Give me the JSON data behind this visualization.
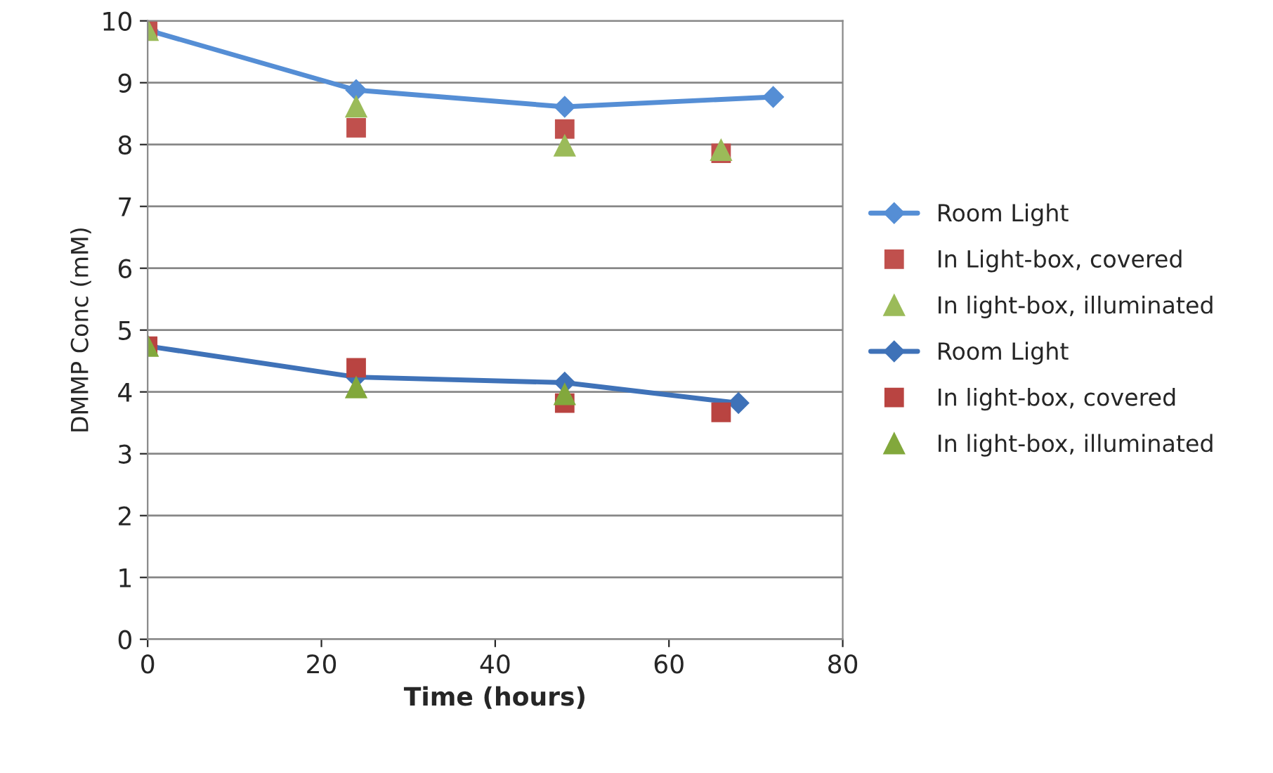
{
  "chart_data": {
    "type": "line",
    "xlabel": "Time (hours)",
    "ylabel": "DMMP Conc (mM)",
    "xlim": [
      0,
      80
    ],
    "xticks": [
      0,
      20,
      40,
      60,
      80
    ],
    "ylim": [
      0,
      10
    ],
    "yticks": [
      0,
      1,
      2,
      3,
      4,
      5,
      6,
      7,
      8,
      9,
      10
    ],
    "grid": "y",
    "legend": "right",
    "series": [
      {
        "name": "Room Light",
        "marker": "diamond",
        "line_style": "solid",
        "color": "#558ed5",
        "x": [
          0,
          24,
          48,
          72
        ],
        "values": [
          9.85,
          8.88,
          8.61,
          8.77
        ]
      },
      {
        "name": "In Light-box, covered",
        "type": "scatter",
        "marker": "square",
        "color": "#c0504d",
        "x": [
          0,
          24,
          48,
          66
        ],
        "values": [
          9.85,
          8.27,
          8.25,
          7.86
        ]
      },
      {
        "name": "In light-box, illuminated",
        "type": "scatter",
        "marker": "triangle",
        "color": "#9bbb59",
        "x": [
          0,
          24,
          48,
          66
        ],
        "values": [
          9.85,
          8.61,
          7.98,
          7.91
        ]
      },
      {
        "name": "Room Light",
        "marker": "diamond",
        "line_style": "solid",
        "color": "#3f72b8",
        "x": [
          0,
          24,
          48,
          68
        ],
        "values": [
          4.74,
          4.24,
          4.15,
          3.82
        ]
      },
      {
        "name": "In light-box, covered",
        "type": "scatter",
        "marker": "square",
        "color": "#b94441",
        "x": [
          0,
          24,
          48,
          66
        ],
        "values": [
          4.74,
          4.39,
          3.82,
          3.67
        ]
      },
      {
        "name": "In light-box, illuminated",
        "type": "scatter",
        "marker": "triangle",
        "color": "#82a83c",
        "x": [
          0,
          24,
          48
        ],
        "values": [
          4.74,
          4.07,
          3.96
        ]
      }
    ]
  }
}
